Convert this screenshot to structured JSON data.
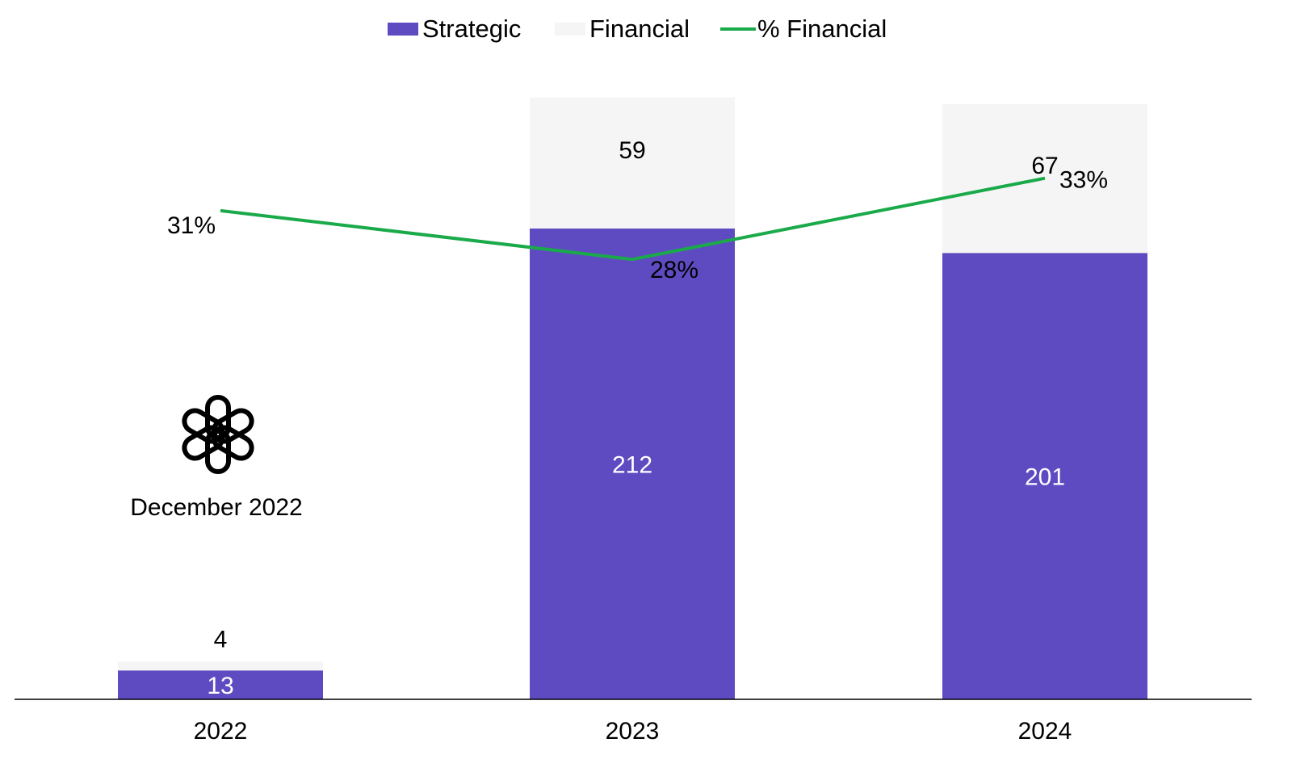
{
  "chart_data": {
    "type": "bar",
    "stacked": true,
    "categories": [
      "2022",
      "2023",
      "2024"
    ],
    "series": [
      {
        "name": "Strategic",
        "values": [
          13,
          212,
          201
        ],
        "labels": [
          "13",
          "212",
          "201"
        ],
        "color": "#5e4bc2",
        "label_color": "#ffffff"
      },
      {
        "name": "Financial",
        "values": [
          4,
          59,
          67
        ],
        "labels": [
          "4",
          "59",
          "67"
        ],
        "color": "#f5f5f5",
        "label_color": "#000000"
      }
    ],
    "line_series": {
      "name": "% Financial",
      "values": [
        31,
        28,
        33
      ],
      "labels": [
        "31%",
        "28%",
        "33%"
      ],
      "color": "#1aaa4a",
      "ylim": [
        20,
        40
      ]
    },
    "ylim": [
      0,
      272
    ],
    "grid": false,
    "legend_position": "top-center",
    "title": "",
    "xlabel": "",
    "ylabel": "",
    "annotation": {
      "text": "December 2022",
      "icon": "openai-logo-icon",
      "category": "2022"
    }
  }
}
